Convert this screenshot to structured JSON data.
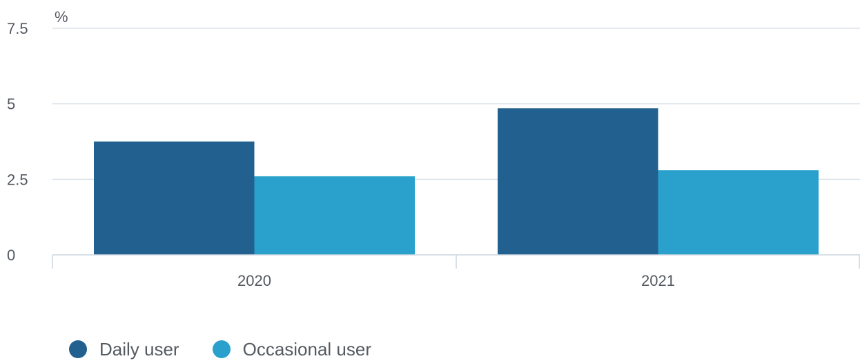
{
  "chart_data": {
    "type": "bar",
    "unit_label": "%",
    "categories": [
      "2020",
      "2021"
    ],
    "series": [
      {
        "name": "Daily user",
        "color": "#22608f",
        "values": [
          3.75,
          4.85
        ]
      },
      {
        "name": "Occasional user",
        "color": "#29a1cc",
        "values": [
          2.6,
          2.8
        ]
      }
    ],
    "ylim": [
      0,
      7.5
    ],
    "yticks": [
      0,
      2.5,
      5,
      7.5
    ],
    "ytick_labels": [
      "0",
      "2.5",
      "5",
      "7.5"
    ],
    "grid": true,
    "legend_position": "bottom-left"
  }
}
